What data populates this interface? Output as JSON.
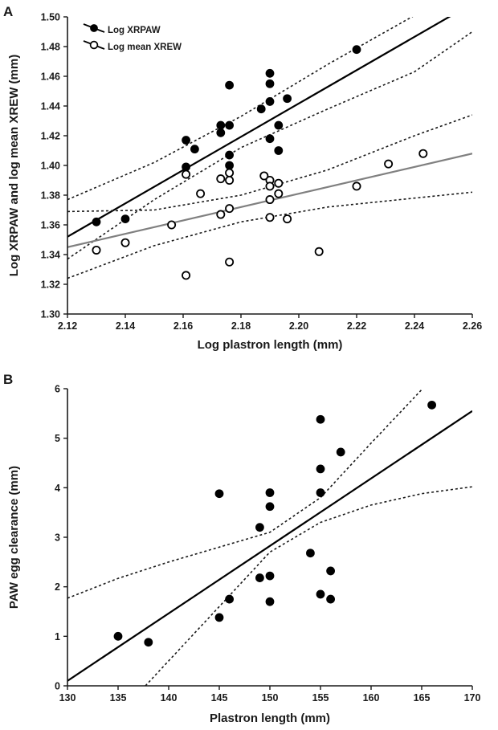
{
  "chart_data": [
    {
      "panel": "A",
      "type": "scatter",
      "xlabel": "Log plastron length (mm)",
      "ylabel": "Log XRPAW and log mean XREW (mm)",
      "xlim": [
        2.12,
        2.26
      ],
      "ylim": [
        1.3,
        1.5
      ],
      "xticks": [
        "2.12",
        "2.14",
        "2.16",
        "2.18",
        "2.20",
        "2.22",
        "2.24",
        "2.26"
      ],
      "yticks": [
        "1.30",
        "1.32",
        "1.34",
        "1.36",
        "1.38",
        "1.40",
        "1.42",
        "1.44",
        "1.46",
        "1.48",
        "1.50"
      ],
      "legend_position": "top-left",
      "series": [
        {
          "name": "Log XRPAW",
          "marker": "filled",
          "color": "#000000",
          "points": [
            [
              2.13,
              1.362
            ],
            [
              2.14,
              1.364
            ],
            [
              2.161,
              1.417
            ],
            [
              2.161,
              1.399
            ],
            [
              2.164,
              1.411
            ],
            [
              2.173,
              1.427
            ],
            [
              2.173,
              1.422
            ],
            [
              2.176,
              1.454
            ],
            [
              2.176,
              1.427
            ],
            [
              2.176,
              1.407
            ],
            [
              2.176,
              1.4
            ],
            [
              2.187,
              1.438
            ],
            [
              2.19,
              1.462
            ],
            [
              2.19,
              1.455
            ],
            [
              2.19,
              1.443
            ],
            [
              2.19,
              1.418
            ],
            [
              2.193,
              1.427
            ],
            [
              2.193,
              1.41
            ],
            [
              2.196,
              1.445
            ],
            [
              2.22,
              1.478
            ]
          ],
          "fit": {
            "x": [
              2.12,
              2.26
            ],
            "y": [
              1.352,
              1.509
            ],
            "color": "#000000"
          },
          "ci_lower": {
            "x": [
              2.12,
              2.15,
              2.18,
              2.21,
              2.24,
              2.26
            ],
            "y": [
              1.337,
              1.377,
              1.412,
              1.438,
              1.463,
              1.49
            ]
          },
          "ci_upper": {
            "x": [
              2.12,
              2.15,
              2.18,
              2.21,
              2.24
            ],
            "y": [
              1.377,
              1.402,
              1.433,
              1.468,
              1.501
            ]
          }
        },
        {
          "name": "Log mean XREW",
          "marker": "open",
          "color": "#000000",
          "points": [
            [
              2.13,
              1.343
            ],
            [
              2.14,
              1.348
            ],
            [
              2.156,
              1.36
            ],
            [
              2.161,
              1.326
            ],
            [
              2.161,
              1.394
            ],
            [
              2.166,
              1.381
            ],
            [
              2.173,
              1.391
            ],
            [
              2.173,
              1.367
            ],
            [
              2.176,
              1.395
            ],
            [
              2.176,
              1.39
            ],
            [
              2.176,
              1.371
            ],
            [
              2.176,
              1.335
            ],
            [
              2.188,
              1.393
            ],
            [
              2.19,
              1.39
            ],
            [
              2.19,
              1.386
            ],
            [
              2.19,
              1.377
            ],
            [
              2.19,
              1.365
            ],
            [
              2.193,
              1.388
            ],
            [
              2.193,
              1.381
            ],
            [
              2.196,
              1.364
            ],
            [
              2.207,
              1.342
            ],
            [
              2.22,
              1.386
            ],
            [
              2.231,
              1.401
            ],
            [
              2.243,
              1.408
            ]
          ],
          "fit": {
            "x": [
              2.12,
              2.26
            ],
            "y": [
              1.345,
              1.408
            ],
            "color": "#808080"
          },
          "ci_lower": {
            "x": [
              2.12,
              2.15,
              2.18,
              2.21,
              2.24,
              2.26
            ],
            "y": [
              1.324,
              1.346,
              1.362,
              1.372,
              1.378,
              1.382
            ]
          },
          "ci_upper": {
            "x": [
              2.12,
              2.15,
              2.18,
              2.21,
              2.24,
              2.26
            ],
            "y": [
              1.369,
              1.37,
              1.38,
              1.397,
              1.42,
              1.434
            ]
          }
        }
      ]
    },
    {
      "panel": "B",
      "type": "scatter",
      "xlabel": "Plastron length (mm)",
      "ylabel": "PAW egg clearance (mm)",
      "xlim": [
        130,
        170
      ],
      "ylim": [
        0,
        6
      ],
      "xticks": [
        "130",
        "135",
        "140",
        "145",
        "150",
        "155",
        "160",
        "165",
        "170"
      ],
      "yticks": [
        "0",
        "1",
        "2",
        "3",
        "4",
        "5",
        "6"
      ],
      "series": [
        {
          "marker": "filled",
          "color": "#000000",
          "points": [
            [
              135,
              1.0
            ],
            [
              138,
              0.88
            ],
            [
              145,
              3.88
            ],
            [
              145,
              1.38
            ],
            [
              146,
              1.75
            ],
            [
              149,
              3.2
            ],
            [
              149,
              2.18
            ],
            [
              150,
              3.9
            ],
            [
              150,
              3.62
            ],
            [
              150,
              2.22
            ],
            [
              150,
              1.7
            ],
            [
              154,
              2.68
            ],
            [
              155,
              5.38
            ],
            [
              155,
              4.38
            ],
            [
              155,
              3.9
            ],
            [
              155,
              1.85
            ],
            [
              156,
              2.32
            ],
            [
              156,
              1.75
            ],
            [
              157,
              4.72
            ],
            [
              166,
              5.67
            ]
          ],
          "fit": {
            "x": [
              130,
              170
            ],
            "y": [
              0.1,
              5.55
            ],
            "color": "#000000"
          },
          "ci_lower": {
            "x": [
              137.7,
              145,
              150,
              155,
              160,
              165,
              170
            ],
            "y": [
              0,
              1.6,
              2.7,
              3.3,
              3.65,
              3.88,
              4.02
            ]
          },
          "ci_upper": {
            "x": [
              130,
              135,
              140,
              145,
              150,
              155,
              160,
              165
            ],
            "y": [
              1.77,
              2.17,
              2.5,
              2.8,
              3.1,
              3.8,
              4.9,
              5.98
            ]
          }
        }
      ]
    }
  ]
}
